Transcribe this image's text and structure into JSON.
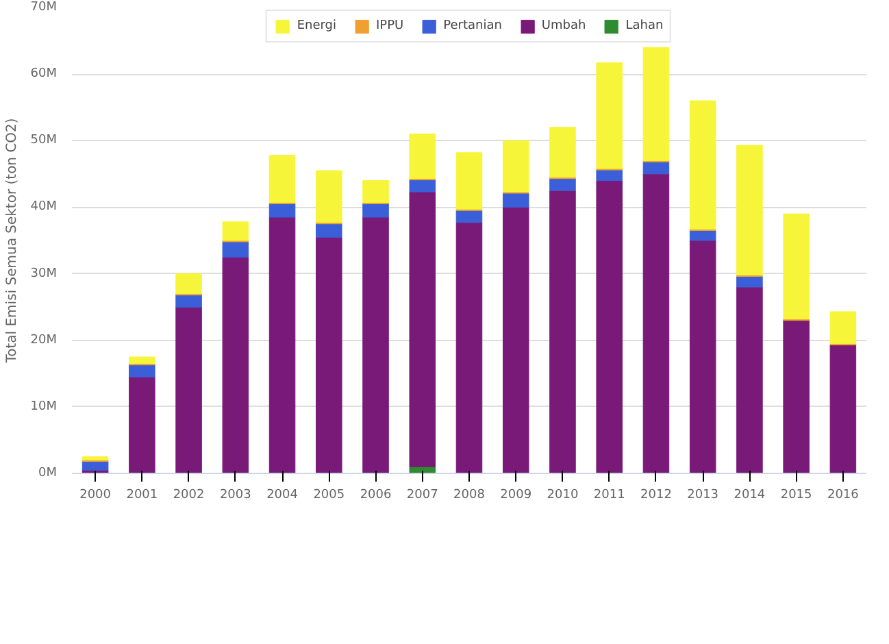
{
  "chart_data": {
    "type": "bar",
    "stacked": true,
    "ylabel": "Total Emisi Semua Sektor (ton CO2)",
    "categories": [
      "2000",
      "2001",
      "2002",
      "2003",
      "2004",
      "2005",
      "2006",
      "2007",
      "2008",
      "2009",
      "2010",
      "2011",
      "2012",
      "2013",
      "2014",
      "2015",
      "2016"
    ],
    "series": [
      {
        "name": "Lahan",
        "color": "#2e8b2e",
        "values": [
          0,
          0,
          0,
          0,
          0,
          0,
          0,
          1.0,
          0,
          0,
          0,
          0,
          0,
          0,
          0,
          0,
          0
        ]
      },
      {
        "name": "Umbah",
        "color": "#7a1a78",
        "values": [
          0.5,
          14.5,
          25,
          32.5,
          38.5,
          35.5,
          38.5,
          41.3,
          37.7,
          40,
          42.5,
          44,
          45,
          35,
          28,
          23,
          19.3
        ]
      },
      {
        "name": "Pertanian",
        "color": "#3a5fd8",
        "values": [
          1.3,
          1.8,
          1.8,
          2.3,
          2.0,
          2.0,
          2.0,
          1.8,
          1.8,
          2.1,
          1.8,
          1.6,
          1.8,
          1.5,
          1.6,
          0,
          0
        ]
      },
      {
        "name": "IPPU",
        "color": "#f0a030",
        "values": [
          0.2,
          0.2,
          0.2,
          0.2,
          0.2,
          0.2,
          0.2,
          0.2,
          0.2,
          0.2,
          0.2,
          0.2,
          0.2,
          0.2,
          0.2,
          0.2,
          0.2
        ]
      },
      {
        "name": "Energi",
        "color": "#f7f53a",
        "values": [
          0.5,
          1.0,
          3.0,
          2.8,
          7.1,
          7.8,
          3.3,
          6.7,
          8.5,
          7.7,
          7.5,
          15.9,
          17.0,
          19.3,
          19.5,
          15.8,
          4.8
        ]
      }
    ],
    "ylim": [
      0,
      70
    ],
    "yticks": [
      {
        "value": 0,
        "label": "0M"
      },
      {
        "value": 10,
        "label": "10M"
      },
      {
        "value": 20,
        "label": "20M"
      },
      {
        "value": 30,
        "label": "30M"
      },
      {
        "value": 40,
        "label": "40M"
      },
      {
        "value": 50,
        "label": "50M"
      },
      {
        "value": 60,
        "label": "60M"
      },
      {
        "value": 70,
        "label": "70M"
      }
    ],
    "grid": "y",
    "legend": "top"
  }
}
